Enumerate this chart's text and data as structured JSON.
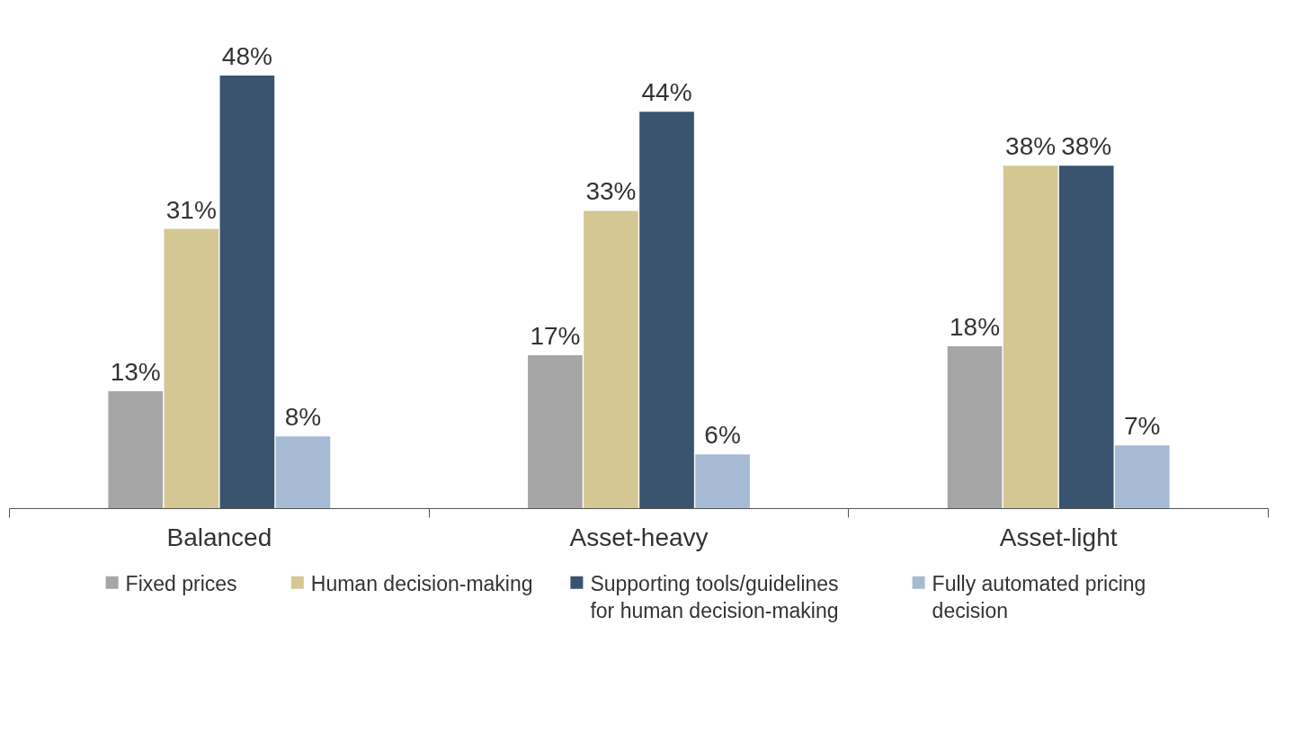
{
  "chart_data": {
    "type": "bar",
    "categories": [
      "Balanced",
      "Asset-heavy",
      "Asset-light"
    ],
    "series": [
      {
        "name": "Fixed prices",
        "color": "#a6a6a6",
        "values": [
          13,
          17,
          18
        ],
        "value_labels": [
          "13%",
          "17%",
          "18%"
        ]
      },
      {
        "name": "Human decision-making",
        "color": "#d5c794",
        "values": [
          31,
          33,
          38
        ],
        "value_labels": [
          "31%",
          "33%",
          "38%"
        ]
      },
      {
        "name": "Supporting tools/guidelines for human decision-making",
        "color": "#3a546f",
        "values": [
          48,
          44,
          38
        ],
        "value_labels": [
          "48%",
          "44%",
          "38%"
        ]
      },
      {
        "name": "Fully automated pricing decision",
        "color": "#a6bbd3",
        "values": [
          8,
          6,
          7
        ],
        "value_labels": [
          "8%",
          "6%",
          "7%"
        ]
      }
    ],
    "legend": "bottom",
    "grid": false
  }
}
